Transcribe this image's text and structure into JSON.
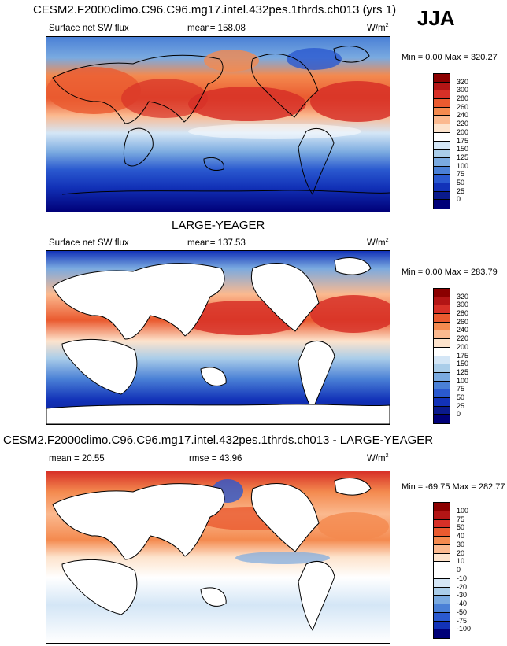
{
  "season": "JJA",
  "panels": [
    {
      "title": "CESM2.F2000climo.C96.C96.mg17.intel.432pes.1thrds.ch013 (yrs 1)",
      "left_label": "Surface net SW flux",
      "center_label": "mean= 158.08",
      "units": "W/m",
      "units_sup": "2",
      "minmax": "Min =   0.00 Max = 320.27",
      "colorbar": {
        "labels": [
          "320",
          "300",
          "280",
          "260",
          "240",
          "220",
          "200",
          "175",
          "150",
          "125",
          "100",
          "75",
          "50",
          "25",
          "0"
        ],
        "colors": [
          "#8b0000",
          "#b31515",
          "#d73027",
          "#ea5a2f",
          "#f48a4f",
          "#fbb98f",
          "#fde3cc",
          "#ffffff",
          "#d4e6f6",
          "#aacde9",
          "#7aaae0",
          "#4a80d6",
          "#2a59cf",
          "#1232b8",
          "#0a1a8c",
          "#000078"
        ]
      }
    },
    {
      "title": "LARGE-YEAGER",
      "left_label": "Surface net SW flux",
      "center_label": "mean= 137.53",
      "units": "W/m",
      "units_sup": "2",
      "minmax": "Min =   0.00 Max = 283.79",
      "colorbar": {
        "labels": [
          "320",
          "300",
          "280",
          "260",
          "240",
          "220",
          "200",
          "175",
          "150",
          "125",
          "100",
          "75",
          "50",
          "25",
          "0"
        ],
        "colors": [
          "#8b0000",
          "#b31515",
          "#d73027",
          "#ea5a2f",
          "#f48a4f",
          "#fbb98f",
          "#fde3cc",
          "#ffffff",
          "#d4e6f6",
          "#aacde9",
          "#7aaae0",
          "#4a80d6",
          "#2a59cf",
          "#1232b8",
          "#0a1a8c",
          "#000078"
        ]
      }
    },
    {
      "title": "CESM2.F2000climo.C96.C96.mg17.intel.432pes.1thrds.ch013 - LARGE-YEAGER",
      "left_label": "mean =  20.55",
      "center_label": "rmse =  43.96",
      "units": "W/m",
      "units_sup": "2",
      "minmax": "Min = -69.75 Max = 282.77",
      "colorbar": {
        "labels": [
          "100",
          "75",
          "50",
          "40",
          "30",
          "20",
          "10",
          "0",
          "-10",
          "-20",
          "-30",
          "-40",
          "-50",
          "-75",
          "-100"
        ],
        "colors": [
          "#8b0000",
          "#b31515",
          "#d73027",
          "#ea5a2f",
          "#f48a4f",
          "#fbb98f",
          "#fde3cc",
          "#ffffff",
          "#ffffff",
          "#d4e6f6",
          "#aacde9",
          "#7aaae0",
          "#4a80d6",
          "#2a59cf",
          "#1232b8",
          "#000078"
        ]
      }
    }
  ]
}
